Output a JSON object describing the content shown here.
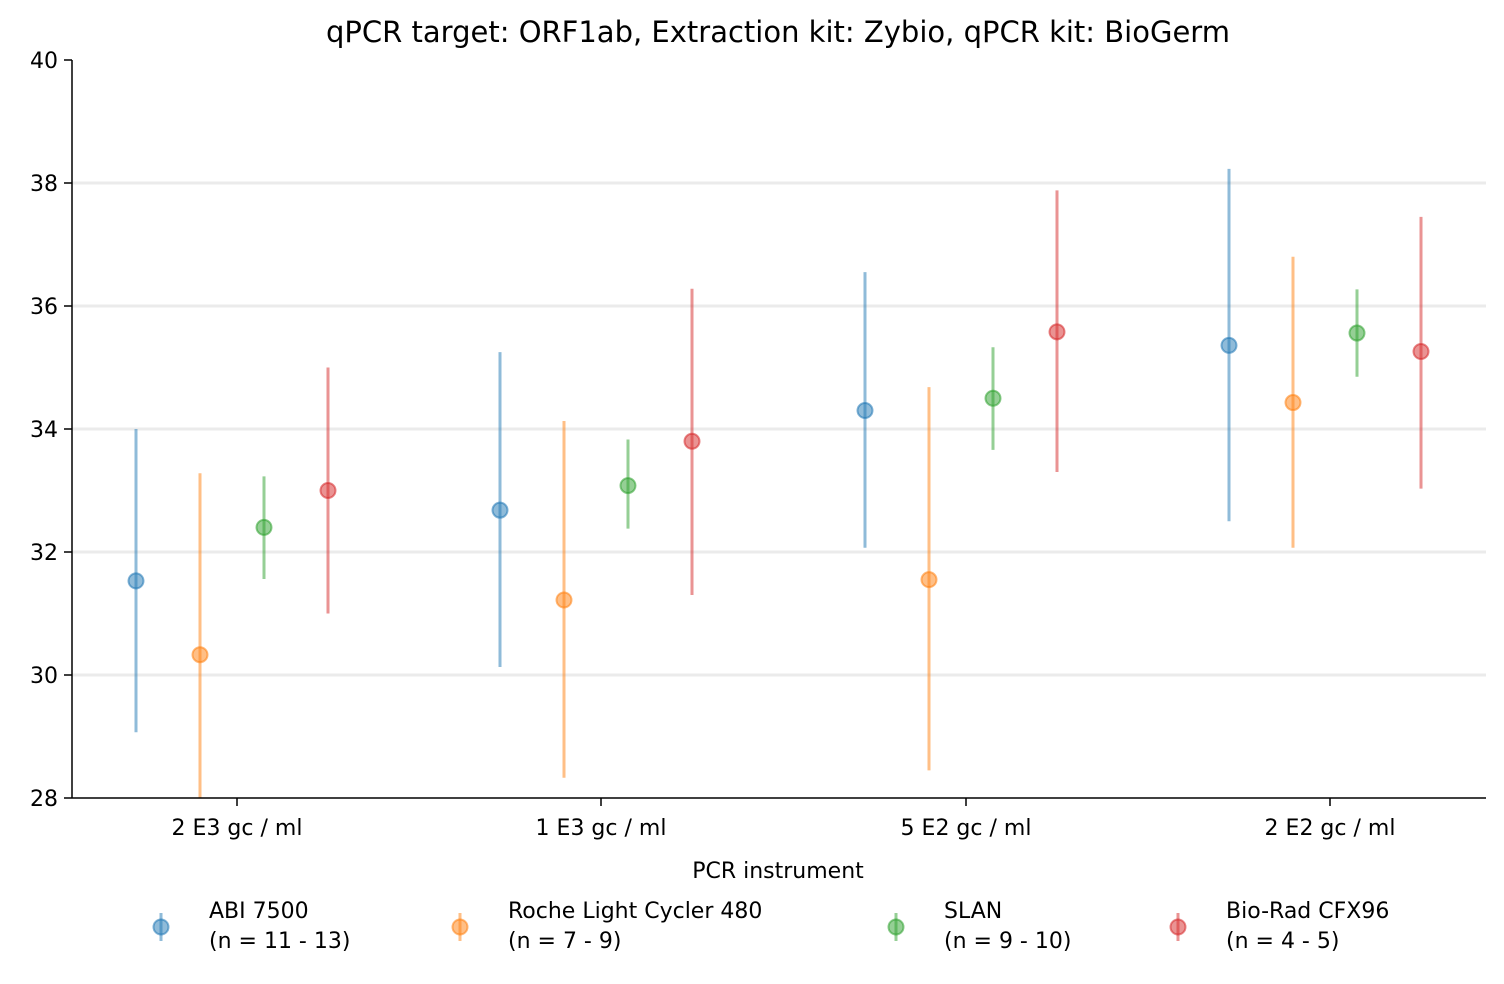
{
  "chart_data": {
    "type": "scatter",
    "title": "qPCR target: ORF1ab, Extraction kit: Zybio, qPCR kit: BioGerm",
    "xlabel": "PCR instrument",
    "ylabel": "",
    "categories": [
      "2 E3 gc / ml",
      "1 E3 gc / ml",
      "5 E2 gc / ml",
      "2 E2 gc / ml"
    ],
    "ylim": [
      28,
      40
    ],
    "yticks": [
      28,
      30,
      32,
      34,
      36,
      38,
      40
    ],
    "grid": "horizontal",
    "legend_position": "bottom",
    "series": [
      {
        "name": "ABI 7500",
        "n_label": "(n = 11 - 13)",
        "color": "#1f77b4",
        "values": [
          31.53,
          32.68,
          34.3,
          35.36
        ],
        "lower": [
          29.07,
          30.13,
          32.07,
          32.5
        ],
        "upper": [
          34.0,
          35.25,
          36.55,
          38.23
        ]
      },
      {
        "name": "Roche Light Cycler 480",
        "n_label": "(n = 7 - 9)",
        "color": "#ff7f0e",
        "values": [
          30.33,
          31.22,
          31.55,
          34.43
        ],
        "lower": [
          28.0,
          28.33,
          28.45,
          32.07
        ],
        "upper": [
          33.28,
          34.13,
          34.68,
          36.8
        ]
      },
      {
        "name": "SLAN",
        "n_label": "(n = 9 - 10)",
        "color": "#2ca02c",
        "values": [
          32.4,
          33.08,
          34.5,
          35.56
        ],
        "lower": [
          31.56,
          32.38,
          33.66,
          34.85
        ],
        "upper": [
          33.23,
          33.83,
          35.33,
          36.27
        ]
      },
      {
        "name": "Bio-Rad CFX96",
        "n_label": "(n = 4 - 5)",
        "color": "#d62728",
        "values": [
          33.0,
          33.8,
          35.58,
          35.26
        ],
        "lower": [
          31.0,
          31.3,
          33.3,
          33.03
        ],
        "upper": [
          35.0,
          36.28,
          37.88,
          37.45
        ]
      }
    ]
  }
}
